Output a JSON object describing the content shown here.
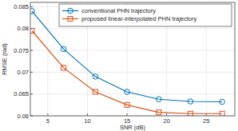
{
  "chart_data": {
    "type": "line",
    "x_label": "SNR (dB)",
    "y_label": "RMSE (rad)",
    "x": [
      3,
      7,
      11,
      15,
      19,
      23,
      27
    ],
    "series": [
      {
        "name": "conventional PHN trajectory",
        "color": "#0072bd",
        "marker": "circle",
        "line_style": "solid",
        "values": [
          0.084,
          0.0753,
          0.069,
          0.0655,
          0.0638,
          0.0633,
          0.0632
        ]
      },
      {
        "name": "proposed linear-interpolated PHN trajectory",
        "color": "#d95319",
        "marker": "square",
        "line_style": "solid",
        "values": [
          0.0795,
          0.071,
          0.0655,
          0.0625,
          0.0608,
          0.0605,
          0.0605
        ]
      }
    ],
    "xlim": [
      2.8,
      28.6
    ],
    "xticks": [
      5,
      10,
      15,
      20,
      25
    ],
    "ylim": [
      0.06,
      0.086
    ],
    "yticks": [
      0.06,
      0.065,
      0.07,
      0.075,
      0.08,
      0.085
    ],
    "grid": true,
    "legend": "top-right"
  }
}
